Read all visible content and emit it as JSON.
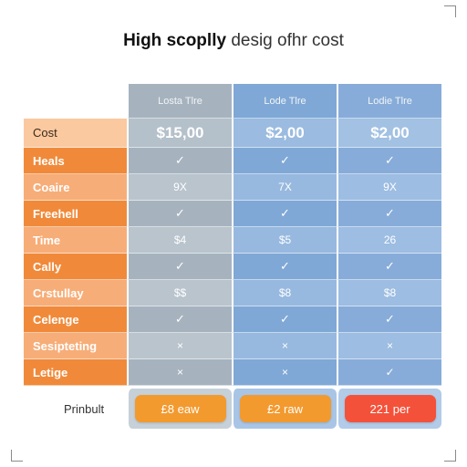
{
  "title": {
    "bold": "High scoplly",
    "light": "desig ofhr cost"
  },
  "columns": [
    {
      "header": "Losta Tlre",
      "price": "$15,00"
    },
    {
      "header": "Lode Tlre",
      "price": "$2,00"
    },
    {
      "header": "Lodie Tlre",
      "price": "$2,00"
    }
  ],
  "cost_label": "Cost",
  "rows": [
    {
      "label": "Heals",
      "values": [
        "✓",
        "✓",
        "✓"
      ]
    },
    {
      "label": "Coaire",
      "values": [
        "9X",
        "7X",
        "9X"
      ]
    },
    {
      "label": "Freehell",
      "values": [
        "✓",
        "✓",
        "✓"
      ]
    },
    {
      "label": "Time",
      "values": [
        "$4",
        "$5",
        "26"
      ]
    },
    {
      "label": "Cally",
      "values": [
        "✓",
        "✓",
        "✓"
      ]
    },
    {
      "label": "Crstullay",
      "values": [
        "$$",
        "$8",
        "$8"
      ]
    },
    {
      "label": "Celenge",
      "values": [
        "✓",
        "✓",
        "✓"
      ]
    },
    {
      "label": "Sesipteting",
      "values": [
        "×",
        "×",
        "×"
      ]
    },
    {
      "label": "Letige",
      "values": [
        "×",
        "×",
        "✓"
      ]
    }
  ],
  "footer": {
    "label": "Prinbult",
    "buttons": [
      "£8 eaw",
      "£2 raw",
      "221 per"
    ]
  },
  "colors": {
    "orange": "#f08a3a",
    "button_orange": "#f39a2f",
    "button_red": "#f4513a",
    "blue": "#7fa8d6",
    "gray": "#a6b3bf"
  }
}
